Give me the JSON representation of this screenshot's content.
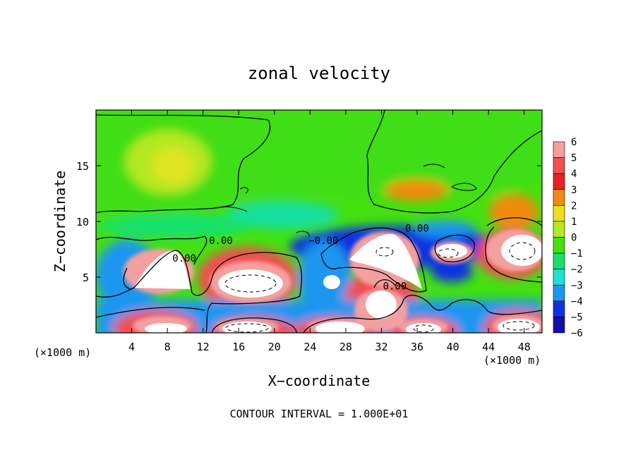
{
  "chart_data": {
    "type": "heatmap",
    "title": "zonal velocity",
    "xlabel": "X−coordinate",
    "ylabel": "Z−coordinate",
    "x_unit_left": "(×1000 m)",
    "x_unit_right": "(×1000 m)",
    "footer": "CONTOUR INTERVAL = 1.000E+01",
    "xlim": [
      0,
      50
    ],
    "ylim": [
      0,
      20
    ],
    "xticks": [
      4,
      8,
      12,
      16,
      20,
      24,
      28,
      32,
      36,
      40,
      44,
      48
    ],
    "yticks": [
      5,
      10,
      15
    ],
    "colorbar": {
      "levels": [
        6,
        5,
        4,
        3,
        2,
        1,
        0,
        -1,
        -2,
        -3,
        -4,
        -5,
        -6
      ],
      "colors": [
        "#f4a0a0",
        "#f05050",
        "#e82020",
        "#f08c10",
        "#ece020",
        "#b4e820",
        "#44e010",
        "#18e070",
        "#20e0d0",
        "#1e96f0",
        "#1030e0",
        "#1010a8",
        "#6a18a0"
      ]
    },
    "contour_labels": [
      {
        "text": "0.00",
        "x": 14,
        "z": 8.3
      },
      {
        "text": "0.00",
        "x": 9.9,
        "z": 6.7
      },
      {
        "text": "0.00",
        "x": 36,
        "z": 9.4
      },
      {
        "text": "0.00",
        "x": 33.5,
        "z": 4.2
      },
      {
        "text": "−0.00",
        "x": 25.5,
        "z": 8.3
      }
    ],
    "features": [
      {
        "name": "positive-cell",
        "value": 6,
        "x": 18,
        "z": 5.0,
        "rx": 4.0,
        "rz": 2.3
      },
      {
        "name": "negative-band",
        "value": -4,
        "x": 34,
        "z": 7.2,
        "rx": 9.5,
        "rz": 2.4
      },
      {
        "name": "positive-cell",
        "value": 6,
        "x": 8.5,
        "z": 5.8,
        "rx": 3.2,
        "rz": 2.2
      },
      {
        "name": "positive-cell",
        "value": 6,
        "x": 40.5,
        "z": 7.0,
        "rx": 2.6,
        "rz": 1.1
      },
      {
        "name": "positive-cell",
        "value": 6,
        "x": 47,
        "z": 7.3,
        "rx": 3.6,
        "rz": 2.0
      },
      {
        "name": "positive-max",
        "value": 6,
        "x": 32.5,
        "z": 6.5,
        "rx": 3.2,
        "rz": 2.2
      },
      {
        "name": "weak-positive",
        "value": 3,
        "x": 34.5,
        "z": 12.4,
        "rx": 2.6,
        "rz": 1.1
      },
      {
        "name": "weak-positive",
        "value": 2,
        "x": 8.0,
        "z": 14.5,
        "rx": 4.0,
        "rz": 3.0
      }
    ]
  }
}
